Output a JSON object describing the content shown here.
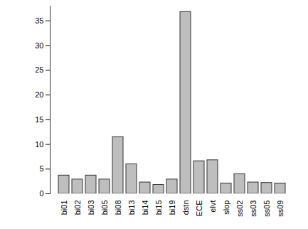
{
  "chart_data": {
    "type": "bar",
    "categories": [
      "bi01",
      "bi02",
      "bi03",
      "bi05",
      "bi08",
      "bi13",
      "bi14",
      "bi15",
      "bi19",
      "dstn",
      "ECE",
      "elvt",
      "slop",
      "ss02",
      "ss03",
      "ss05",
      "ss09"
    ],
    "values": [
      3.7,
      2.9,
      3.7,
      2.9,
      11.5,
      6.0,
      2.3,
      1.8,
      2.9,
      36.8,
      6.6,
      6.8,
      2.1,
      4.0,
      2.3,
      2.2,
      2.1
    ],
    "color": "#bebebe",
    "ylim": [
      0,
      38
    ],
    "yticks": [
      0,
      5,
      10,
      15,
      20,
      25,
      30,
      35
    ],
    "grid": false
  }
}
